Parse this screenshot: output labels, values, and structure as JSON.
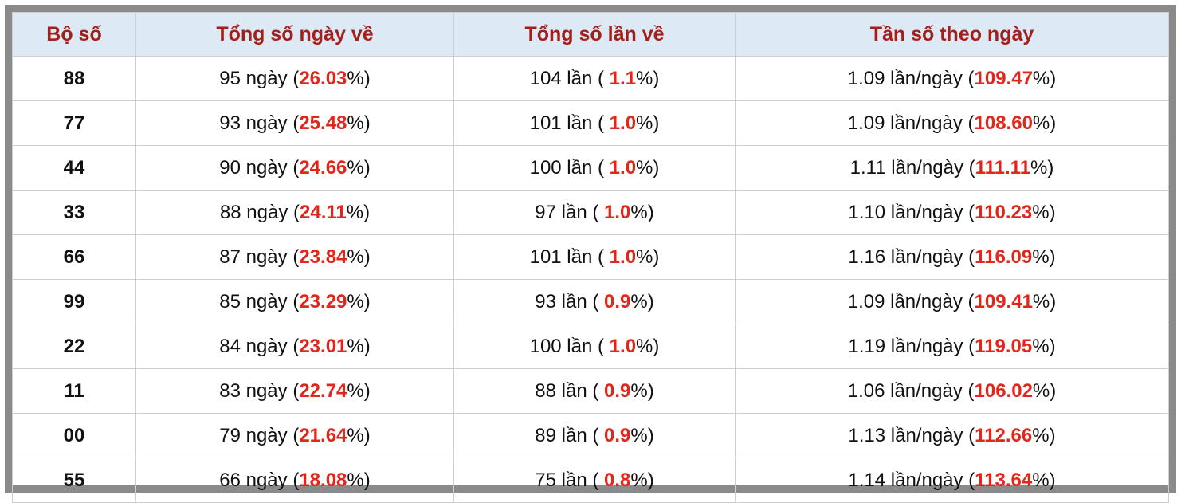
{
  "table": {
    "headers": [
      "Bộ số",
      "Tổng số ngày về",
      "Tổng số lần về",
      "Tần số theo ngày"
    ],
    "rows": [
      {
        "bo_so": "88",
        "days": [
          "95 ngày (",
          "26.03",
          "%)"
        ],
        "times": [
          "104 lần ( ",
          "1.1",
          "%)"
        ],
        "freq": [
          "1.09 lần/ngày (",
          "109.47",
          "%)"
        ]
      },
      {
        "bo_so": "77",
        "days": [
          "93 ngày (",
          "25.48",
          "%)"
        ],
        "times": [
          "101 lần ( ",
          "1.0",
          "%)"
        ],
        "freq": [
          "1.09 lần/ngày (",
          "108.60",
          "%)"
        ]
      },
      {
        "bo_so": "44",
        "days": [
          "90 ngày (",
          "24.66",
          "%)"
        ],
        "times": [
          "100 lần ( ",
          "1.0",
          "%)"
        ],
        "freq": [
          "1.11 lần/ngày (",
          "111.11",
          "%)"
        ]
      },
      {
        "bo_so": "33",
        "days": [
          "88 ngày (",
          "24.11",
          "%)"
        ],
        "times": [
          "97 lần ( ",
          "1.0",
          "%)"
        ],
        "freq": [
          "1.10 lần/ngày (",
          "110.23",
          "%)"
        ]
      },
      {
        "bo_so": "66",
        "days": [
          "87 ngày (",
          "23.84",
          "%)"
        ],
        "times": [
          "101 lần ( ",
          "1.0",
          "%)"
        ],
        "freq": [
          "1.16 lần/ngày (",
          "116.09",
          "%)"
        ]
      },
      {
        "bo_so": "99",
        "days": [
          "85 ngày (",
          "23.29",
          "%)"
        ],
        "times": [
          "93 lần ( ",
          "0.9",
          "%)"
        ],
        "freq": [
          "1.09 lần/ngày (",
          "109.41",
          "%)"
        ]
      },
      {
        "bo_so": "22",
        "days": [
          "84 ngày (",
          "23.01",
          "%)"
        ],
        "times": [
          "100 lần ( ",
          "1.0",
          "%)"
        ],
        "freq": [
          "1.19 lần/ngày (",
          "119.05",
          "%)"
        ]
      },
      {
        "bo_so": "11",
        "days": [
          "83 ngày (",
          "22.74",
          "%)"
        ],
        "times": [
          "88 lần ( ",
          "0.9",
          "%)"
        ],
        "freq": [
          "1.06 lần/ngày (",
          "106.02",
          "%)"
        ]
      },
      {
        "bo_so": "00",
        "days": [
          "79 ngày (",
          "21.64",
          "%)"
        ],
        "times": [
          "89 lần ( ",
          "0.9",
          "%)"
        ],
        "freq": [
          "1.13 lần/ngày (",
          "112.66",
          "%)"
        ]
      },
      {
        "bo_so": "55",
        "days": [
          "66 ngày (",
          "18.08",
          "%)"
        ],
        "times": [
          "75 lần ( ",
          "0.8",
          "%)"
        ],
        "freq": [
          "1.14 lần/ngày (",
          "113.64",
          "%)"
        ]
      }
    ]
  }
}
